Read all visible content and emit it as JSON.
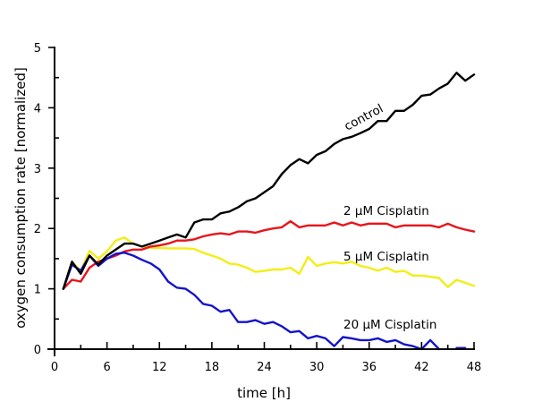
{
  "chart_data": {
    "type": "line",
    "title": "",
    "xlabel": "time [h]",
    "ylabel": "oxygen consumption rate [normalized]",
    "xlim": [
      0,
      48
    ],
    "ylim": [
      0,
      5
    ],
    "xticks": [
      0,
      6,
      12,
      18,
      24,
      30,
      36,
      42,
      48
    ],
    "xtick_labels": [
      "0",
      "6",
      "12",
      "18",
      "24",
      "30",
      "36",
      "42",
      "48"
    ],
    "xminor_step": 3,
    "yticks": [
      0,
      1,
      2,
      3,
      4,
      5
    ],
    "ytick_labels": [
      "0",
      "1",
      "2",
      "3",
      "4",
      "5"
    ],
    "yminor_step": 0.5,
    "grid": false,
    "legend": "inline labels",
    "x": [
      1,
      2,
      3,
      4,
      5,
      6,
      7,
      8,
      9,
      10,
      11,
      12,
      13,
      14,
      15,
      16,
      17,
      18,
      19,
      20,
      21,
      22,
      23,
      24,
      25,
      26,
      27,
      28,
      29,
      30,
      31,
      32,
      33,
      34,
      35,
      36,
      37,
      38,
      39,
      40,
      41,
      42,
      43,
      44,
      45,
      46,
      47,
      48
    ],
    "series": [
      {
        "name": "control",
        "label": "control",
        "color": "#000000",
        "values": [
          1.0,
          1.45,
          1.25,
          1.55,
          1.4,
          1.55,
          1.65,
          1.75,
          1.75,
          1.7,
          1.75,
          1.8,
          1.85,
          1.9,
          1.85,
          2.1,
          2.15,
          2.15,
          2.25,
          2.28,
          2.35,
          2.45,
          2.5,
          2.6,
          2.7,
          2.9,
          3.05,
          3.15,
          3.08,
          3.22,
          3.28,
          3.4,
          3.48,
          3.52,
          3.58,
          3.65,
          3.78,
          3.78,
          3.95,
          3.95,
          4.05,
          4.2,
          4.22,
          4.32,
          4.4,
          4.58,
          4.45,
          4.55
        ]
      },
      {
        "name": "2 µM Cisplatin",
        "label": "2 µM Cisplatin",
        "color": "#e8141c",
        "values": [
          1.0,
          1.15,
          1.12,
          1.35,
          1.45,
          1.5,
          1.55,
          1.62,
          1.65,
          1.65,
          1.7,
          1.72,
          1.75,
          1.8,
          1.8,
          1.82,
          1.87,
          1.9,
          1.92,
          1.9,
          1.95,
          1.95,
          1.93,
          1.97,
          2.0,
          2.02,
          2.12,
          2.02,
          2.05,
          2.05,
          2.05,
          2.1,
          2.05,
          2.1,
          2.05,
          2.08,
          2.08,
          2.08,
          2.02,
          2.05,
          2.05,
          2.05,
          2.05,
          2.02,
          2.08,
          2.02,
          1.98,
          1.95
        ]
      },
      {
        "name": "5 µM Cisplatin",
        "label": "5 µM Cisplatin",
        "color": "#f2ee16",
        "values": [
          1.0,
          1.45,
          1.3,
          1.63,
          1.5,
          1.62,
          1.8,
          1.85,
          1.75,
          1.7,
          1.68,
          1.68,
          1.67,
          1.67,
          1.67,
          1.66,
          1.6,
          1.55,
          1.5,
          1.42,
          1.4,
          1.35,
          1.28,
          1.3,
          1.32,
          1.32,
          1.35,
          1.25,
          1.53,
          1.38,
          1.42,
          1.44,
          1.42,
          1.45,
          1.38,
          1.35,
          1.3,
          1.35,
          1.28,
          1.3,
          1.22,
          1.22,
          1.2,
          1.18,
          1.03,
          1.15,
          1.1,
          1.05
        ]
      },
      {
        "name": "20 µM Cisplatin",
        "label": "20 µM Cisplatin",
        "color": "#1414c8",
        "values": [
          1.0,
          1.4,
          1.3,
          1.55,
          1.38,
          1.5,
          1.58,
          1.6,
          1.55,
          1.48,
          1.42,
          1.32,
          1.12,
          1.02,
          1.0,
          0.9,
          0.75,
          0.72,
          0.62,
          0.65,
          0.45,
          0.45,
          0.48,
          0.42,
          0.45,
          0.38,
          0.28,
          0.3,
          0.18,
          0.22,
          0.18,
          0.05,
          0.2,
          0.18,
          0.15,
          0.15,
          0.18,
          0.12,
          0.15,
          0.08,
          0.05,
          0.0,
          0.15,
          0.0,
          null,
          0.02,
          0.02,
          null
        ]
      }
    ]
  }
}
